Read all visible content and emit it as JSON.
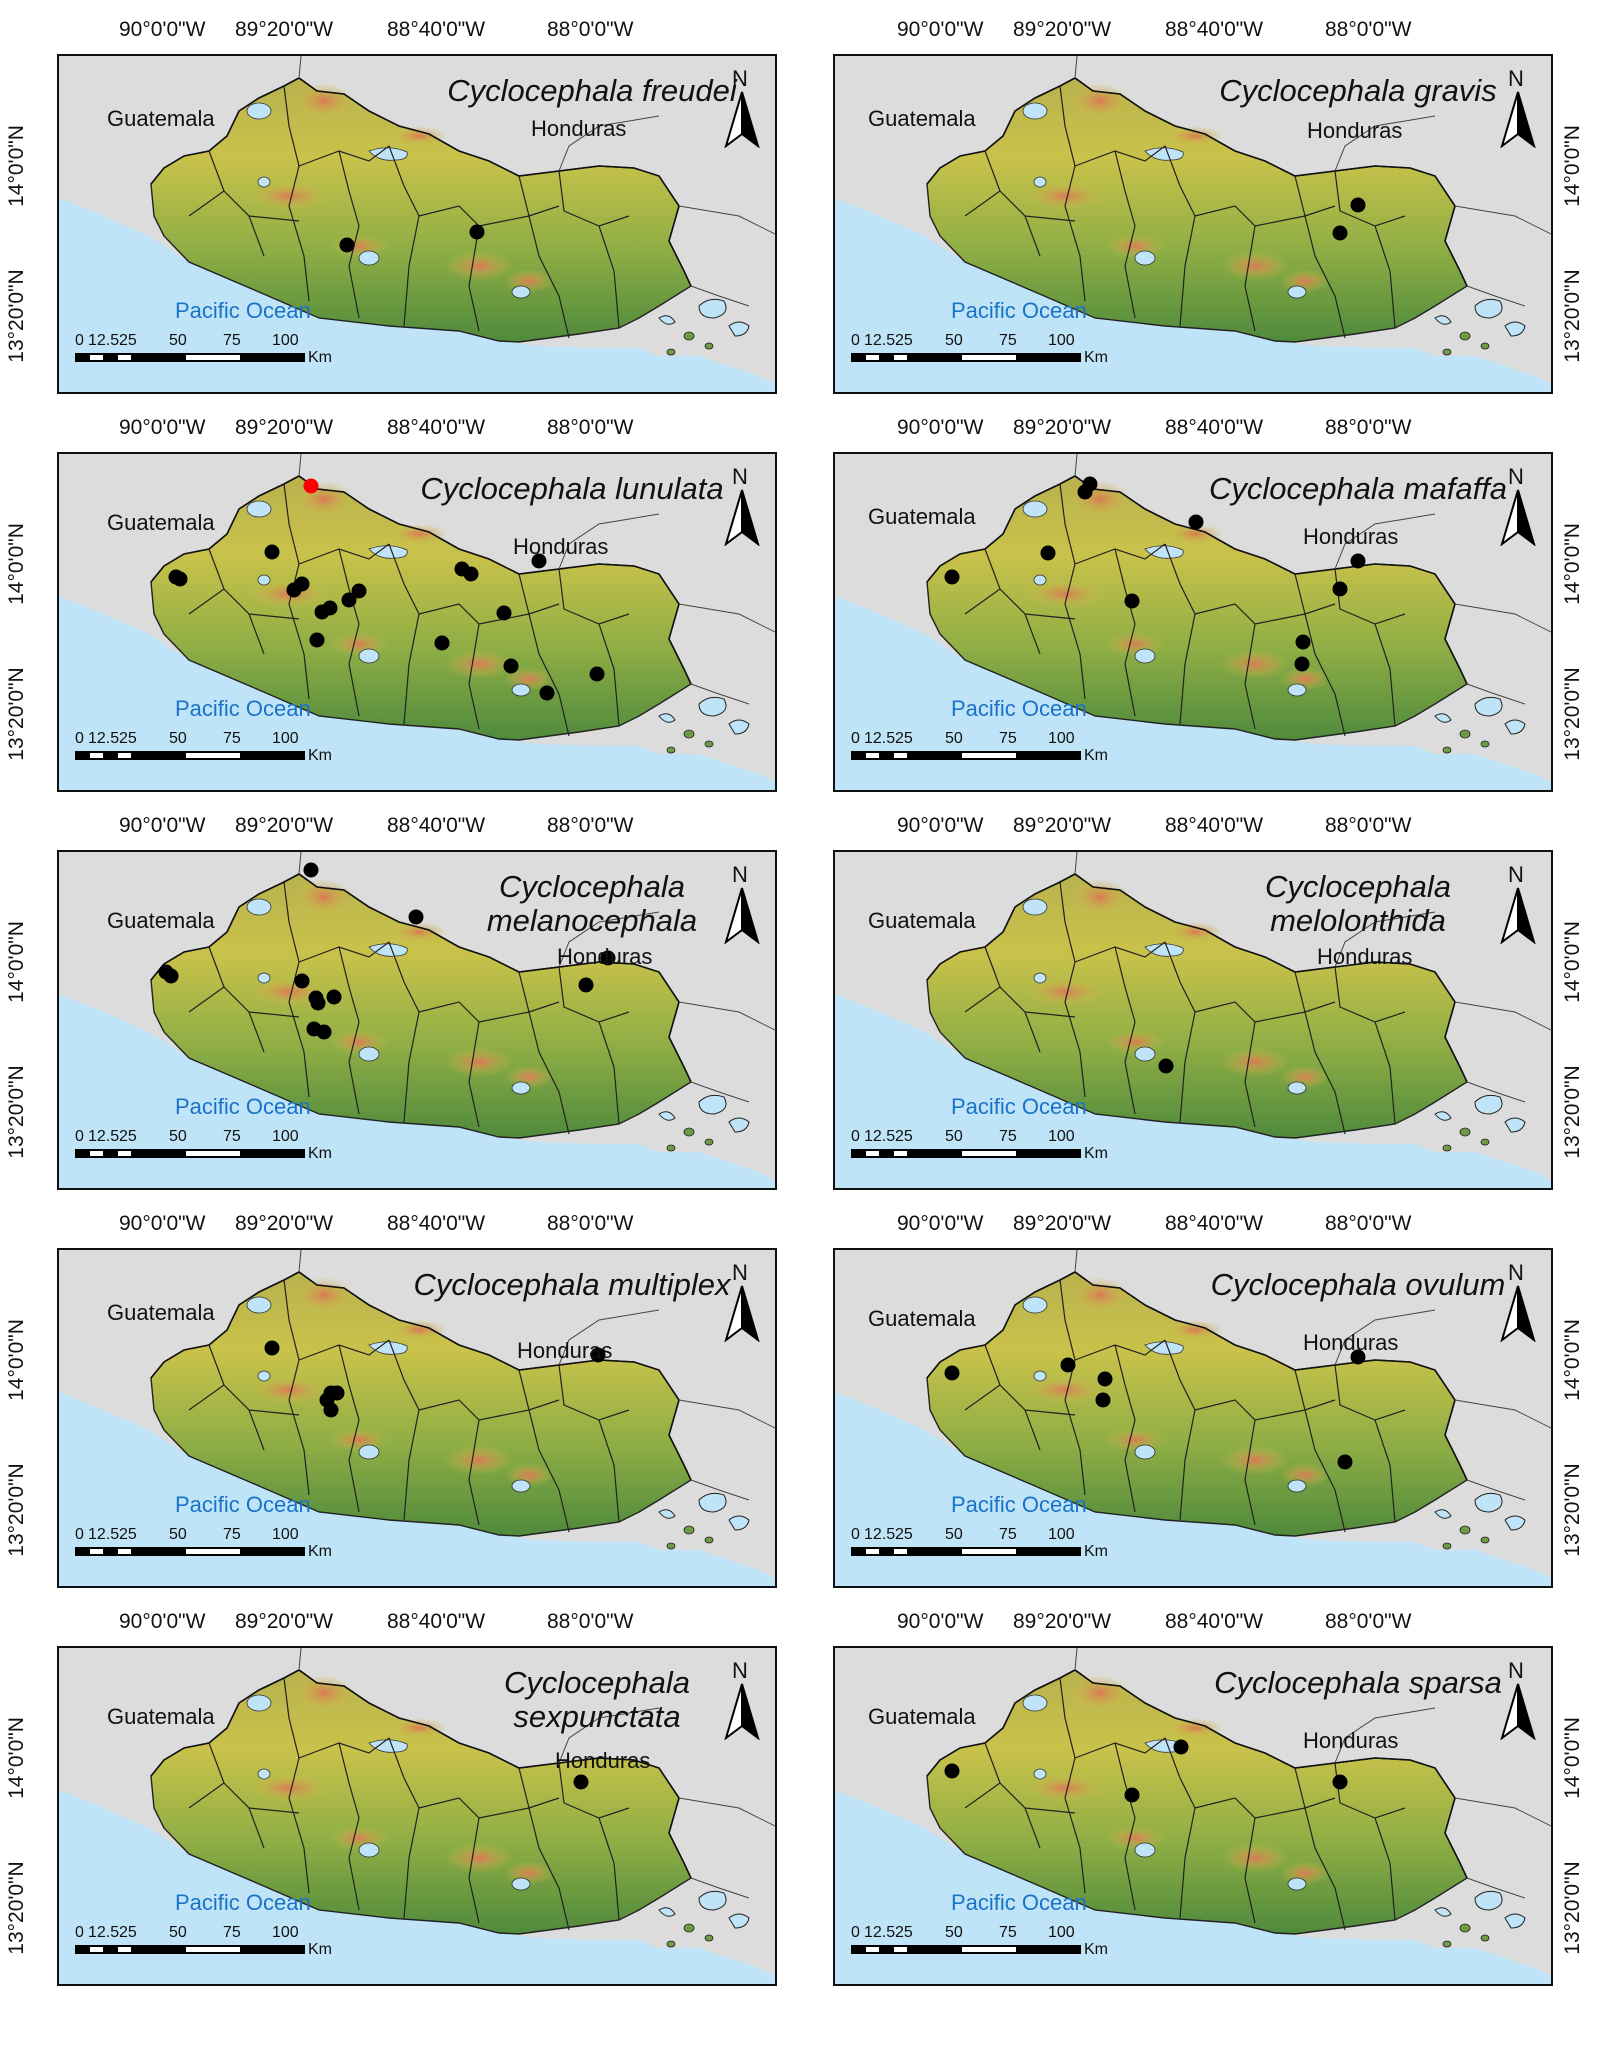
{
  "longitude_labels": [
    "90°0'0\"W",
    "89°20'0\"W",
    "88°40'0\"W",
    "88°0'0\"W"
  ],
  "latitude_labels": [
    "14°0'0\"N",
    "13°20'0\"N"
  ],
  "labels": {
    "guatemala": "Guatemala",
    "honduras": "Honduras",
    "ocean": "Pacific Ocean",
    "north": "N"
  },
  "scale": {
    "ticks": [
      "0",
      "12.5",
      "25",
      "50",
      "75",
      "100"
    ],
    "unit": "Km"
  },
  "colors": {
    "ocean": "#bfe4f7",
    "outside": "#dcdcdc",
    "land_low": "#4f8a3c",
    "land_mid": "#c9c24a",
    "land_high": "#d97a55",
    "record": "#000000",
    "highlight_record": "#ff0000"
  },
  "panels": [
    {
      "species_line1": "Cyclocephala freudei",
      "species_line2": "",
      "records": [
        [
          288,
          189
        ],
        [
          418,
          176
        ]
      ]
    },
    {
      "species_line1": "Cyclocephala gravis",
      "species_line2": "",
      "records": [
        [
          523,
          149
        ],
        [
          505,
          177
        ]
      ]
    },
    {
      "species_line1": "Cyclocephala lunulata",
      "species_line2": "",
      "highlight_records": [
        [
          252,
          32
        ]
      ],
      "records": [
        [
          117,
          123
        ],
        [
          121,
          125
        ],
        [
          213,
          98
        ],
        [
          243,
          130
        ],
        [
          235,
          136
        ],
        [
          300,
          137
        ],
        [
          290,
          146
        ],
        [
          271,
          154
        ],
        [
          263,
          158
        ],
        [
          403,
          115
        ],
        [
          412,
          120
        ],
        [
          445,
          159
        ],
        [
          258,
          186
        ],
        [
          480,
          107
        ],
        [
          383,
          189
        ],
        [
          452,
          212
        ],
        [
          538,
          220
        ],
        [
          488,
          239
        ]
      ]
    },
    {
      "species_line1": "Cyclocephala mafaffa",
      "species_line2": "",
      "records": [
        [
          255,
          30
        ],
        [
          250,
          38
        ],
        [
          361,
          68
        ],
        [
          213,
          99
        ],
        [
          117,
          123
        ],
        [
          297,
          147
        ],
        [
          523,
          107
        ],
        [
          505,
          135
        ],
        [
          468,
          188
        ],
        [
          467,
          210
        ]
      ]
    },
    {
      "species_line1": "Cyclocephala",
      "species_line2": "melanocephala",
      "records": [
        [
          252,
          18
        ],
        [
          357,
          65
        ],
        [
          107,
          120
        ],
        [
          112,
          124
        ],
        [
          243,
          129
        ],
        [
          257,
          146
        ],
        [
          259,
          151
        ],
        [
          275,
          145
        ],
        [
          265,
          180
        ],
        [
          255,
          177
        ],
        [
          549,
          106
        ],
        [
          527,
          133
        ]
      ]
    },
    {
      "species_line1": "Cyclocephala",
      "species_line2": "melolonthida",
      "records": [
        [
          331,
          214
        ]
      ]
    },
    {
      "species_line1": "Cyclocephala multiplex",
      "species_line2": "",
      "records": [
        [
          213,
          98
        ],
        [
          272,
          143
        ],
        [
          278,
          143
        ],
        [
          268,
          150
        ],
        [
          272,
          160
        ],
        [
          539,
          105
        ]
      ]
    },
    {
      "species_line1": "Cyclocephala ovulum",
      "species_line2": "",
      "records": [
        [
          117,
          123
        ],
        [
          233,
          115
        ],
        [
          270,
          129
        ],
        [
          268,
          150
        ],
        [
          523,
          107
        ],
        [
          510,
          212
        ]
      ]
    },
    {
      "species_line1": "Cyclocephala",
      "species_line2": "sexpunctata",
      "records": [
        [
          522,
          134
        ]
      ]
    },
    {
      "species_line1": "Cyclocephala sparsa",
      "species_line2": "",
      "records": [
        [
          117,
          123
        ],
        [
          346,
          99
        ],
        [
          297,
          147
        ],
        [
          505,
          134
        ]
      ]
    }
  ]
}
